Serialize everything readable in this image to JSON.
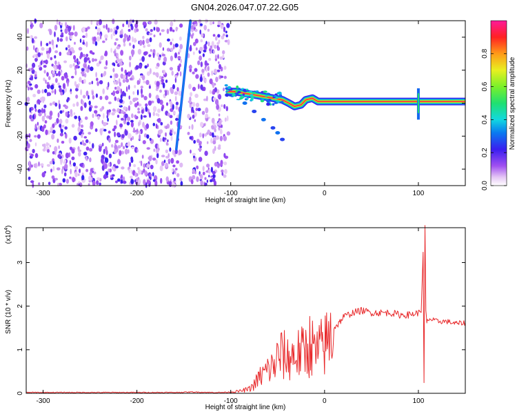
{
  "title": "GN04.2026.047.07.22.G05",
  "chart_data": [
    {
      "type": "heatmap",
      "title": "GN04.2026.047.07.22.G05",
      "xlabel": "Height of straight line (km)",
      "ylabel": "Frequency (Hz)",
      "xlim": [
        -318,
        150
      ],
      "ylim": [
        -50,
        50
      ],
      "xticks": [
        -300,
        -200,
        -100,
        0,
        100
      ],
      "xtick_labels": [
        "-300",
        "-200",
        "-100",
        "0",
        "100"
      ],
      "yticks": [
        -40,
        -20,
        0,
        20,
        40
      ],
      "ytick_labels": [
        "-40",
        "-20",
        "0",
        "20",
        "40"
      ],
      "colorbar": {
        "label": "Normalized spectral amplitude",
        "range": [
          0,
          1
        ],
        "ticks": [
          0.0,
          0.2,
          0.4,
          0.6,
          0.8
        ],
        "tick_labels": [
          "0.0",
          "0.2",
          "0.4",
          "0.6",
          "0.8"
        ]
      },
      "features": {
        "noise_region_x": [
          -318,
          -102
        ],
        "blank_gap_x": [
          -152,
          -145
        ],
        "diagonal_streak": [
          [
            -158,
            -28
          ],
          [
            -143,
            50
          ]
        ],
        "main_ridge": [
          [
            -105,
            7
          ],
          [
            -95,
            7
          ],
          [
            -85,
            6
          ],
          [
            -75,
            5
          ],
          [
            -65,
            4
          ],
          [
            -55,
            3
          ],
          [
            -45,
            2
          ],
          [
            -38,
            0
          ],
          [
            -32,
            -2
          ],
          [
            -25,
            -1
          ],
          [
            -20,
            2
          ],
          [
            -13,
            3
          ],
          [
            -7,
            1
          ],
          [
            0,
            1
          ],
          [
            50,
            1
          ],
          [
            100,
            1
          ],
          [
            150,
            1
          ]
        ],
        "lower_branch": [
          [
            -100,
            5
          ],
          [
            -85,
            0
          ],
          [
            -75,
            -5
          ],
          [
            -65,
            -10
          ],
          [
            -55,
            -15
          ],
          [
            -50,
            -18
          ],
          [
            -45,
            -22
          ]
        ],
        "spike_x": 100
      }
    },
    {
      "type": "line",
      "xlabel": "Height of straight line (km)",
      "ylabel": "SNR (10 * v/v)",
      "y_multiplier_label": "(x10",
      "y_multiplier_exp": "4",
      "xlim": [
        -318,
        150
      ],
      "ylim": [
        0,
        3.8
      ],
      "xticks": [
        -300,
        -200,
        -100,
        0,
        100
      ],
      "xtick_labels": [
        "-300",
        "-200",
        "-100",
        "0",
        "100"
      ],
      "yticks": [
        0,
        1,
        2,
        3
      ],
      "ytick_labels": [
        "0",
        "1",
        "2",
        "3"
      ],
      "color": "#e8282a",
      "series": [
        {
          "name": "SNR",
          "x": [
            -318,
            -300,
            -280,
            -260,
            -240,
            -220,
            -200,
            -180,
            -160,
            -140,
            -120,
            -110,
            -100,
            -90,
            -80,
            -75,
            -70,
            -65,
            -60,
            -55,
            -50,
            -45,
            -40,
            -35,
            -30,
            -25,
            -20,
            -15,
            -10,
            -5,
            0,
            5,
            10,
            15,
            20,
            30,
            40,
            50,
            60,
            70,
            80,
            90,
            100,
            103,
            105,
            106,
            107,
            108,
            109,
            110,
            112,
            120,
            130,
            140,
            150
          ],
          "y": [
            0.02,
            0.02,
            0.02,
            0.02,
            0.02,
            0.02,
            0.02,
            0.02,
            0.02,
            0.03,
            0.02,
            0.02,
            0.03,
            0.05,
            0.1,
            0.2,
            0.35,
            0.45,
            0.55,
            0.6,
            0.8,
            0.9,
            0.8,
            0.85,
            0.9,
            0.9,
            1.0,
            1.15,
            0.9,
            1.0,
            1.1,
            1.25,
            1.5,
            1.6,
            1.75,
            1.85,
            1.9,
            1.85,
            1.85,
            1.85,
            1.8,
            1.8,
            1.85,
            1.9,
            3.2,
            0.25,
            3.8,
            1.9,
            1.6,
            1.7,
            1.7,
            1.65,
            1.65,
            1.6,
            1.62
          ]
        }
      ]
    }
  ]
}
